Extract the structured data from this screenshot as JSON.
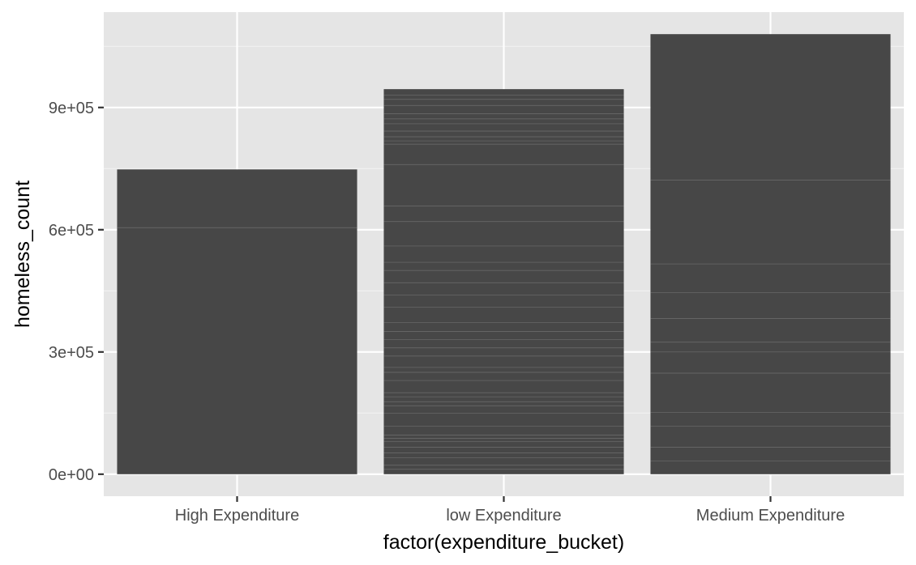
{
  "chart_data": {
    "type": "bar",
    "title": "",
    "xlabel": "factor(expenditure_bucket)",
    "ylabel": "homeless_count",
    "categories": [
      "High Expenditure",
      "low Expenditure",
      "Medium Expenditure"
    ],
    "values": [
      748000,
      945000,
      1080000
    ],
    "ylim": [
      -54000,
      1134000
    ],
    "y_ticks": [
      0,
      300000,
      600000,
      900000
    ],
    "y_tick_labels": [
      "0e+00",
      "3e+05",
      "6e+05",
      "9e+05"
    ],
    "y_minor_ticks": [
      150000,
      450000,
      750000,
      1050000
    ],
    "stack_boundaries": [
      [
        605000
      ],
      [
        12000,
        22000,
        40000,
        52000,
        66000,
        80000,
        88000,
        96000,
        118000,
        150000,
        168000,
        178000,
        190000,
        200000,
        230000,
        250000,
        262000,
        290000,
        310000,
        330000,
        350000,
        372000,
        410000,
        440000,
        470000,
        500000,
        520000,
        560000,
        620000,
        658000,
        760000,
        810000,
        818000,
        828000,
        842000,
        860000,
        872000,
        885000,
        905000,
        920000,
        930000
      ],
      [
        32000,
        66000,
        118000,
        152000,
        248000,
        300000,
        324000,
        382000,
        446000,
        516000,
        722000
      ]
    ],
    "grid": true,
    "legend": "none",
    "colors": {
      "panel_background": "#e5e5e5",
      "grid_major": "#ffffff",
      "grid_minor": "#f2f2f2",
      "bar_fill": "#474747",
      "bar_segment_line": "#6e6e6e",
      "tick_color": "#333333",
      "tick_label_color": "#4d4d4d",
      "axis_title_color": "#000000"
    }
  }
}
